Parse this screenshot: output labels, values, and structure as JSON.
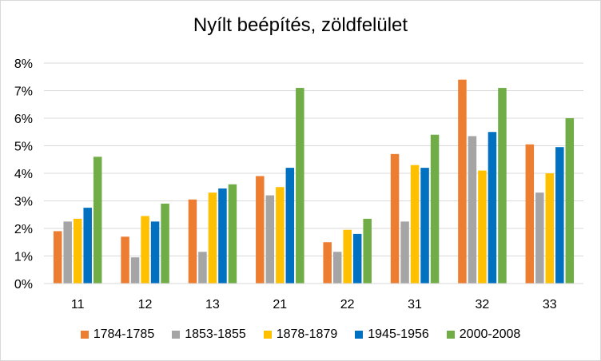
{
  "chart_data": {
    "type": "bar",
    "title": "Nyílt beépítés, zöldfelület",
    "xlabel": "",
    "ylabel": "",
    "categories": [
      "11",
      "12",
      "13",
      "21",
      "22",
      "31",
      "32",
      "33"
    ],
    "ylim": [
      0,
      0.08
    ],
    "yticks": [
      "0%",
      "1%",
      "2%",
      "3%",
      "4%",
      "5%",
      "6%",
      "7%",
      "8%"
    ],
    "grid": true,
    "legend_position": "bottom",
    "series": [
      {
        "name": "1784-1785",
        "color": "#ed7d31",
        "values": [
          0.019,
          0.017,
          0.0305,
          0.039,
          0.015,
          0.047,
          0.074,
          0.0505
        ]
      },
      {
        "name": "1853-1855",
        "color": "#a5a5a5",
        "values": [
          0.0225,
          0.0095,
          0.0115,
          0.032,
          0.0115,
          0.0225,
          0.0535,
          0.033
        ]
      },
      {
        "name": "1878-1879",
        "color": "#ffc000",
        "values": [
          0.0235,
          0.0245,
          0.033,
          0.035,
          0.0195,
          0.043,
          0.041,
          0.04
        ]
      },
      {
        "name": "1945-1956",
        "color": "#0070c0",
        "values": [
          0.0275,
          0.0225,
          0.0345,
          0.042,
          0.018,
          0.042,
          0.055,
          0.0495
        ]
      },
      {
        "name": "2000-2008",
        "color": "#70ad47",
        "values": [
          0.046,
          0.029,
          0.036,
          0.071,
          0.0235,
          0.054,
          0.071,
          0.06
        ]
      }
    ]
  }
}
